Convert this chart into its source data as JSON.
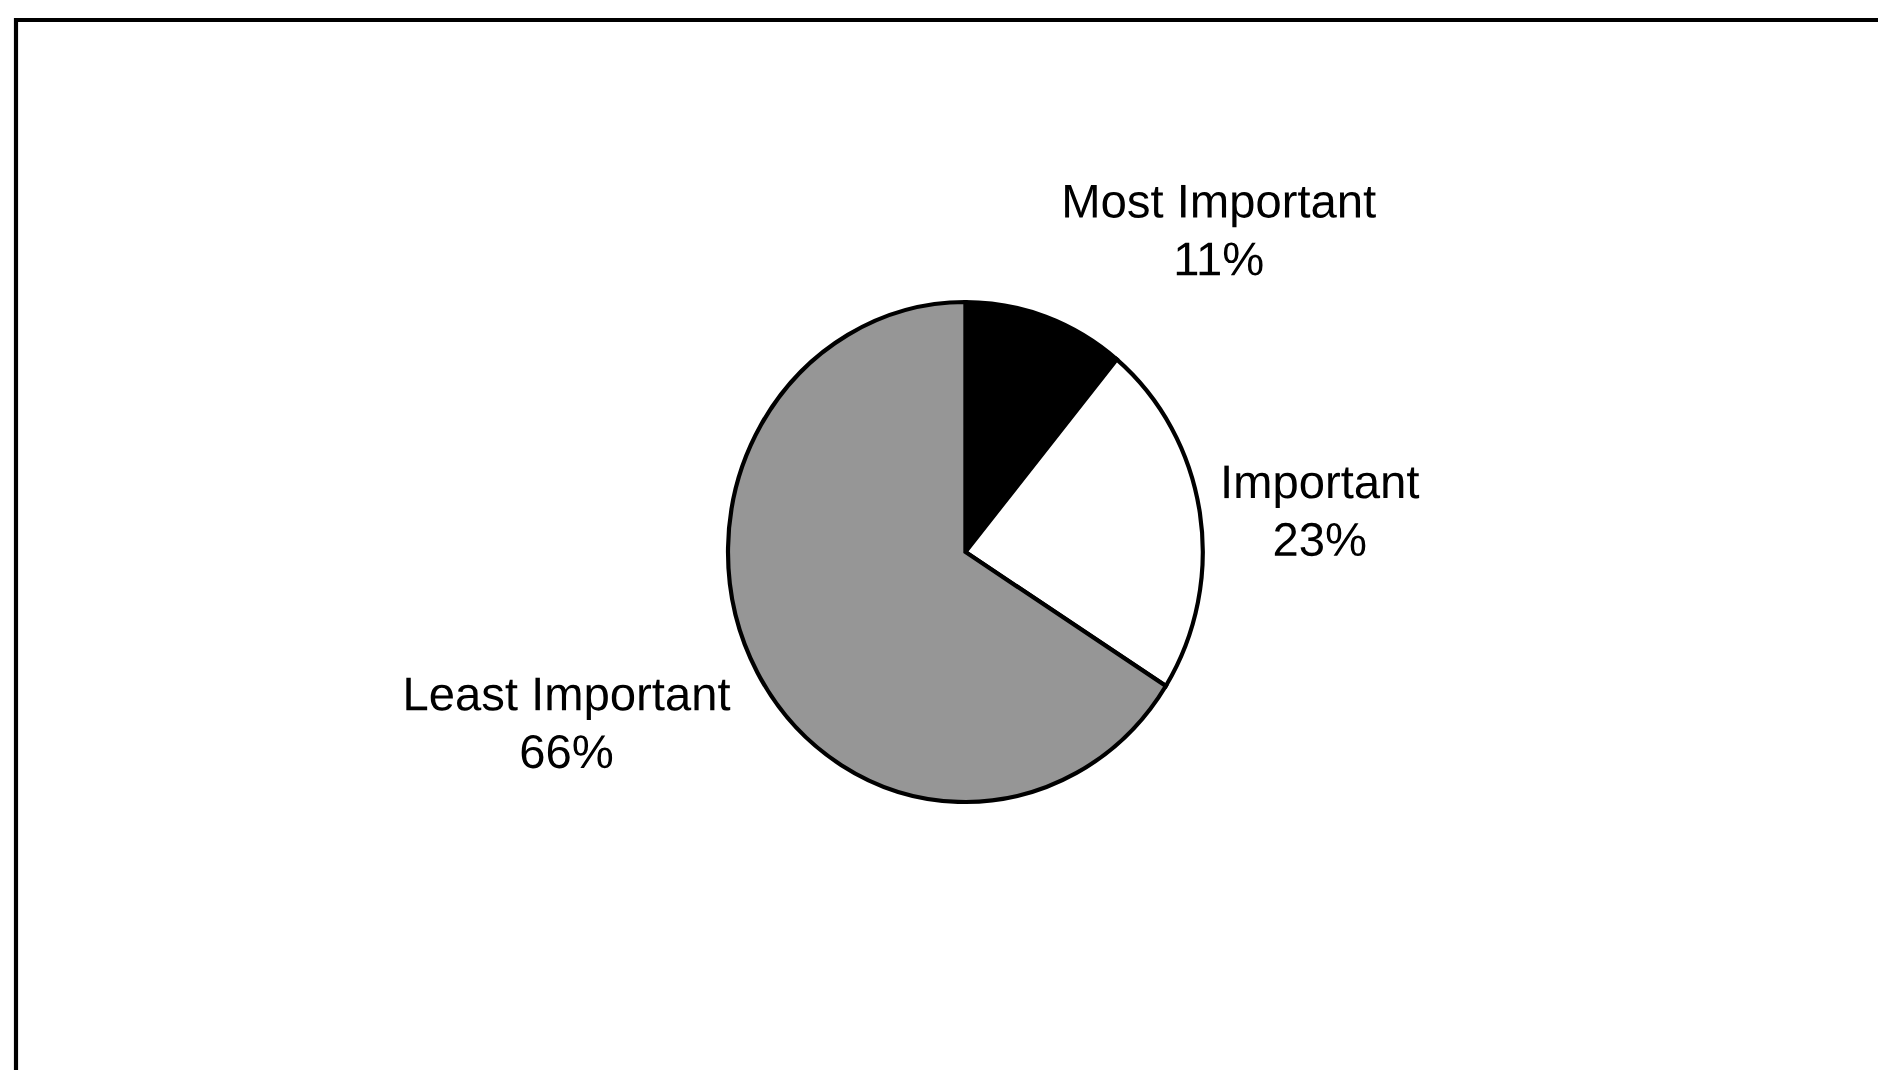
{
  "chart_data": {
    "type": "pie",
    "categories": [
      "Most Important",
      "Important",
      "Least Important"
    ],
    "values": [
      11,
      23,
      66
    ],
    "colors": [
      "#000000",
      "#ffffff",
      "#969696"
    ],
    "value_labels": [
      "11%",
      "23%",
      "66%"
    ]
  }
}
